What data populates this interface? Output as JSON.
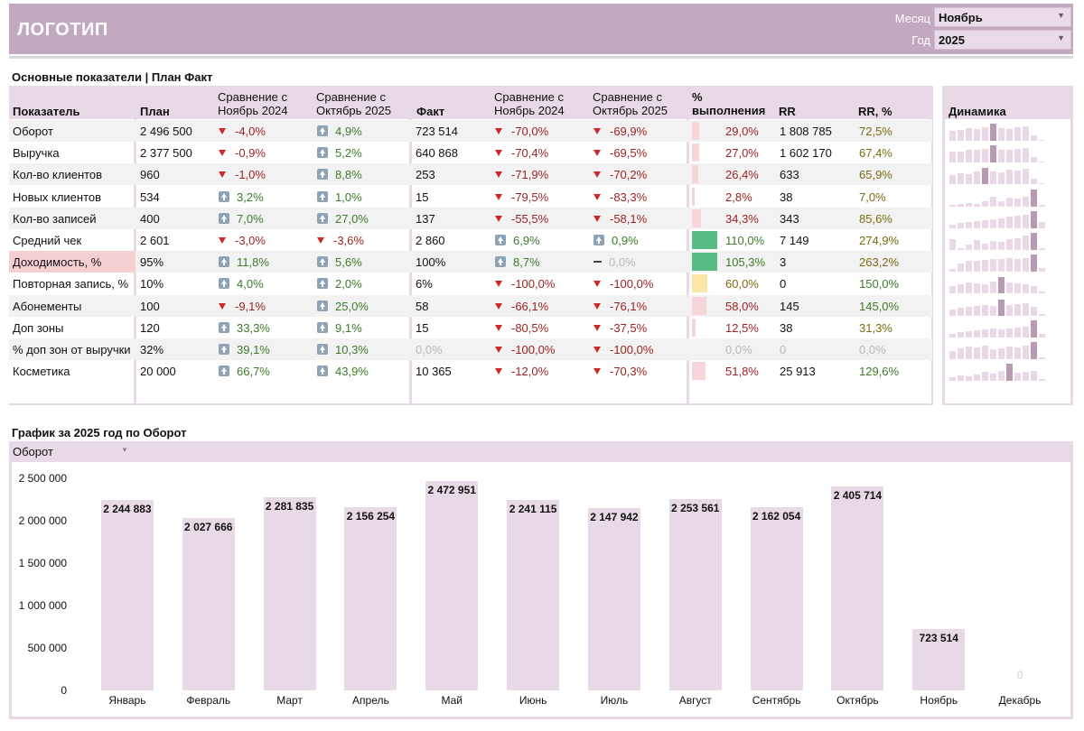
{
  "header": {
    "logo": "ЛОГОТИП",
    "month_label": "Месяц",
    "month_value": "Ноябрь",
    "year_label": "Год",
    "year_value": "2025"
  },
  "table": {
    "title": "Основные показатели | План Факт",
    "headers": {
      "indicator": "Показатель",
      "plan": "План",
      "cmp_prev_year_l1": "Сравнение с",
      "cmp_prev_year_l2": "Ноябрь 2024",
      "cmp_prev_month_l1": "Сравнение с",
      "cmp_prev_month_l2": "Октябрь 2025",
      "fact": "Факт",
      "fact_cmp_prev_year_l1": "Сравнение с",
      "fact_cmp_prev_year_l2": "Ноябрь 2024",
      "fact_cmp_prev_month_l1": "Сравнение с",
      "fact_cmp_prev_month_l2": "Октябрь 2025",
      "completion_l1": "%",
      "completion_l2": "выполнения",
      "rr": "RR",
      "rr_pct": "RR, %",
      "dynamics": "Динамика"
    },
    "rows": [
      {
        "name": "Оборот",
        "plan": "2 496 500",
        "p1": "-4,0%",
        "p1d": "down",
        "p2": "4,9%",
        "p2d": "up",
        "fact": "723 514",
        "f1": "-70,0%",
        "f1d": "down",
        "f2": "-69,9%",
        "f2d": "down",
        "pct": "29,0%",
        "pct_value": 0.29,
        "rr": "1 808 785",
        "rrp": "72,5%",
        "rrp_c": "olive",
        "spark": [
          0.55,
          0.6,
          0.7,
          0.65,
          0.75,
          0.95,
          0.7,
          0.65,
          0.75,
          0.8,
          0.3,
          0
        ],
        "spark_hi": 5
      },
      {
        "name": "Выручка",
        "plan": "2 377 500",
        "p1": "-0,9%",
        "p1d": "down",
        "p2": "5,2%",
        "p2d": "up",
        "fact": "640 868",
        "f1": "-70,4%",
        "f1d": "down",
        "f2": "-69,5%",
        "f2d": "down",
        "pct": "27,0%",
        "pct_value": 0.27,
        "rr": "1 602 170",
        "rrp": "67,4%",
        "rrp_c": "olive",
        "spark": [
          0.6,
          0.6,
          0.7,
          0.7,
          0.75,
          0.95,
          0.7,
          0.7,
          0.75,
          0.8,
          0.3,
          0
        ],
        "spark_hi": 5
      },
      {
        "name": "Кол-во клиентов",
        "plan": "960",
        "p1": "-1,0%",
        "p1d": "down",
        "p2": "8,8%",
        "p2d": "up",
        "fact": "253",
        "f1": "-71,9%",
        "f1d": "down",
        "f2": "-70,2%",
        "f2d": "down",
        "pct": "26,4%",
        "pct_value": 0.264,
        "rr": "633",
        "rrp": "65,9%",
        "rrp_c": "olive",
        "spark": [
          0.5,
          0.6,
          0.55,
          0.7,
          0.9,
          0.7,
          0.65,
          0.8,
          0.75,
          0.85,
          0.3,
          0
        ],
        "spark_hi": 4
      },
      {
        "name": "Новых клиентов",
        "plan": "534",
        "p1": "3,2%",
        "p1d": "up",
        "p2": "1,0%",
        "p2d": "up",
        "fact": "15",
        "f1": "-79,5%",
        "f1d": "down",
        "f2": "-83,3%",
        "f2d": "down",
        "pct": "2,8%",
        "pct_value": 0.028,
        "rr": "38",
        "rrp": "7,0%",
        "rrp_c": "olive",
        "spark": [
          0.1,
          0.15,
          0.2,
          0.15,
          0.3,
          0.55,
          0.3,
          0.5,
          0.45,
          0.55,
          0.95,
          0.1
        ],
        "spark_hi": 10
      },
      {
        "name": "Кол-во записей",
        "plan": "400",
        "p1": "7,0%",
        "p1d": "up",
        "p2": "27,0%",
        "p2d": "up",
        "fact": "137",
        "f1": "-55,5%",
        "f1d": "down",
        "f2": "-58,1%",
        "f2d": "down",
        "pct": "34,3%",
        "pct_value": 0.343,
        "rr": "343",
        "rrp": "85,6%",
        "rrp_c": "olive",
        "spark": [
          0.2,
          0.3,
          0.35,
          0.4,
          0.45,
          0.5,
          0.55,
          0.65,
          0.7,
          0.75,
          0.95,
          0.35
        ],
        "spark_hi": 10
      },
      {
        "name": "Средний чек",
        "plan": "2 601",
        "p1": "-3,0%",
        "p1d": "down",
        "p2": "-3,6%",
        "p2d": "down",
        "fact": "2 860",
        "f1": "6,9%",
        "f1d": "up",
        "f2": "0,9%",
        "f2d": "up",
        "pct": "110,0%",
        "pct_value": 1.1,
        "rr": "7 149",
        "rrp": "274,9%",
        "rrp_c": "olive",
        "spark": [
          0.6,
          0.1,
          0.3,
          0.55,
          0.35,
          0.5,
          0.45,
          0.6,
          0.65,
          0.8,
          0.95,
          0.1
        ],
        "spark_hi": 10
      },
      {
        "name": "Доходимость, %",
        "plan": "95%",
        "p1": "11,8%",
        "p1d": "up",
        "p2": "5,6%",
        "p2d": "up",
        "fact": "100%",
        "f1": "8,7%",
        "f1d": "up",
        "f2": "0,0%",
        "f2d": "flat",
        "pct": "105,3%",
        "pct_value": 1.053,
        "rr": "3",
        "rrp": "263,2%",
        "rrp_c": "olive",
        "spark": [
          0.15,
          0.45,
          0.6,
          0.6,
          0.65,
          0.7,
          0.7,
          0.75,
          0.7,
          0.75,
          0.95,
          0.2
        ],
        "spark_hi": 10
      },
      {
        "name": "Повторная запись, %",
        "plan": "10%",
        "p1": "4,0%",
        "p1d": "up",
        "p2": "2,0%",
        "p2d": "up",
        "fact": "6%",
        "f1": "-100,0%",
        "f1d": "down",
        "f2": "-100,0%",
        "f2d": "down",
        "pct": "60,0%",
        "pct_value": 0.6,
        "rr": "0",
        "rrp": "150,0%",
        "rrp_c": "green",
        "spark": [
          0.4,
          0.5,
          0.6,
          0.55,
          0.5,
          0.65,
          0.9,
          0.6,
          0.55,
          0.5,
          0.4,
          0.1
        ],
        "spark_hi": 6
      },
      {
        "name": "Абонементы",
        "plan": "100",
        "p1": "-9,1%",
        "p1d": "down",
        "p2": "25,0%",
        "p2d": "up",
        "fact": "58",
        "f1": "-66,1%",
        "f1d": "down",
        "f2": "-76,1%",
        "f2d": "down",
        "pct": "58,0%",
        "pct_value": 0.58,
        "rr": "145",
        "rrp": "145,0%",
        "rrp_c": "green",
        "spark": [
          0.35,
          0.45,
          0.5,
          0.55,
          0.6,
          0.55,
          0.9,
          0.6,
          0.65,
          0.7,
          0.5,
          0.1
        ],
        "spark_hi": 6
      },
      {
        "name": "Доп зоны",
        "plan": "120",
        "p1": "33,3%",
        "p1d": "up",
        "p2": "9,1%",
        "p2d": "up",
        "fact": "15",
        "f1": "-80,5%",
        "f1d": "down",
        "f2": "-37,5%",
        "f2d": "down",
        "pct": "12,5%",
        "pct_value": 0.125,
        "rr": "38",
        "rrp": "31,3%",
        "rrp_c": "olive",
        "spark": [
          0.2,
          0.3,
          0.35,
          0.4,
          0.45,
          0.5,
          0.45,
          0.5,
          0.55,
          0.6,
          0.95,
          0.2
        ],
        "spark_hi": 10
      },
      {
        "name": "% доп зон от выручки",
        "plan": "32%",
        "p1": "39,1%",
        "p1d": "up",
        "p2": "10,3%",
        "p2d": "up",
        "fact": "0,0%",
        "fact_gray": true,
        "f1": "-100,0%",
        "f1d": "down",
        "f2": "-100,0%",
        "f2d": "down",
        "pct": "0,0%",
        "pct_gray": true,
        "pct_value": 0,
        "rr": "0",
        "rr_gray": true,
        "rrp": "0,0%",
        "rrp_c": "gray",
        "spark": [
          0.45,
          0.6,
          0.7,
          0.65,
          0.75,
          0.55,
          0.6,
          0.7,
          0.65,
          0.75,
          0.95,
          0.1
        ],
        "spark_hi": 10
      },
      {
        "name": "Косметика",
        "plan": "20 000",
        "p1": "66,7%",
        "p1d": "up",
        "p2": "43,9%",
        "p2d": "up",
        "fact": "10 365",
        "f1": "-12,0%",
        "f1d": "down",
        "f2": "-70,3%",
        "f2d": "down",
        "pct": "51,8%",
        "pct_value": 0.518,
        "rr": "25 913",
        "rrp": "129,6%",
        "rrp_c": "green",
        "spark": [
          0.2,
          0.3,
          0.25,
          0.35,
          0.5,
          0.4,
          0.55,
          0.95,
          0.45,
          0.5,
          0.55,
          0.1
        ],
        "spark_hi": 7
      }
    ]
  },
  "colors": {
    "header_bg": "#c2a9bf",
    "frame_bg": "#e7d9e5",
    "bar_pink": "#f6d6d9",
    "bar_green": "#57bd84",
    "bar_yellow": "#fbe6a8",
    "down_red": "#cc2a2a",
    "up_icon": "#8fa3b6"
  },
  "chart": {
    "title": "График за 2025 год по Оборот",
    "selector_value": "Оборот"
  },
  "chart_data": {
    "type": "bar",
    "categories": [
      "Январь",
      "Февраль",
      "Март",
      "Апрель",
      "Май",
      "Июнь",
      "Июль",
      "Август",
      "Сентябрь",
      "Октябрь",
      "Ноябрь",
      "Декабрь"
    ],
    "values": [
      2244883,
      2027666,
      2281835,
      2156254,
      2472951,
      2241115,
      2147942,
      2253561,
      2162054,
      2405714,
      723514,
      0
    ],
    "value_labels": [
      "2 244 883",
      "2 027 666",
      "2 281 835",
      "2 156 254",
      "2 472 951",
      "2 241 115",
      "2 147 942",
      "2 253 561",
      "2 162 054",
      "2 405 714",
      "723 514",
      "0"
    ],
    "yticks": [
      "0",
      "500 000",
      "1 000 000",
      "1 500 000",
      "2 000 000",
      "2 500 000"
    ],
    "ylim": [
      0,
      2500000
    ],
    "grid": false,
    "legend": "none"
  }
}
